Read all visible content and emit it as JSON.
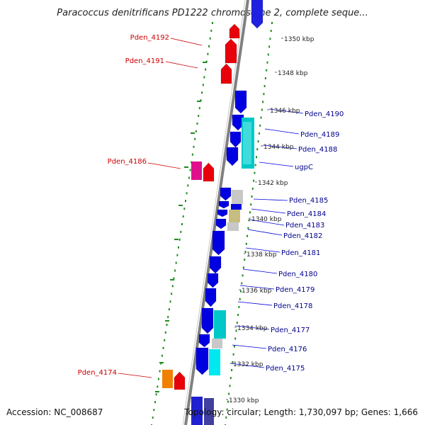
{
  "title": "Paracoccus denitrificans PD1222 chromosome 2, complete seque...",
  "accession": "Accession: NC_008687",
  "info": "Topology: circular; Length: 1,730,097 bp; Genes: 1,666",
  "colors": {
    "forward_gene": "#e8000b",
    "reverse_gene": "#0000e0",
    "reverse_label": "#00008b",
    "forward_label": "#cc0000",
    "tick": "#228b22",
    "backbone": "#808080"
  },
  "scale_labels": [
    "1350 kbp",
    "1348 kbp",
    "1346 kbp",
    "1344 kbp",
    "1342 kbp",
    "1340 kbp",
    "1338 kbp",
    "1336 kbp",
    "1334 kbp",
    "1332 kbp",
    "1330 kbp"
  ],
  "gene_labels_left": [
    "Pden_4192",
    "Pden_4191",
    "Pden_4186",
    "Pden_4174"
  ],
  "gene_labels_right": [
    "Pden_4190",
    "Pden_4189",
    "Pden_4188",
    "ugpC",
    "Pden_4185",
    "Pden_4184",
    "Pden_4183",
    "Pden_4182",
    "Pden_4181",
    "Pden_4180",
    "Pden_4179",
    "Pden_4178",
    "Pden_4177",
    "Pden_4176",
    "Pden_4175"
  ]
}
